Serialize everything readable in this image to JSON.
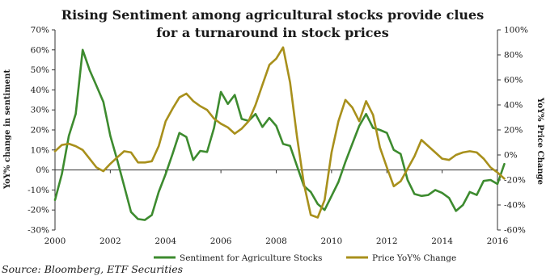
{
  "chart_data": {
    "type": "line",
    "title_lines": [
      "Rising Sentiment among agricultural stocks provide clues",
      "for a turnaround in stock prices"
    ],
    "ylabel_left": "YoY% change in sentiment",
    "ylabel_right": "YoY% Price Change",
    "xlim": [
      2000,
      2016
    ],
    "ylim_left": [
      -30,
      70
    ],
    "ylim_right": [
      -60,
      100
    ],
    "x_ticks": [
      2000,
      2002,
      2004,
      2006,
      2008,
      2010,
      2012,
      2014,
      2016
    ],
    "x_tick_labels": [
      "2000",
      "2002",
      "2004",
      "2006",
      "2008",
      "2010",
      "2012",
      "2014",
      "2016"
    ],
    "left_ticks": [
      -30,
      -20,
      -10,
      0,
      10,
      20,
      30,
      40,
      50,
      60,
      70
    ],
    "left_tick_labels": [
      "-30%",
      "-20%",
      "-10%",
      "0%",
      "10%",
      "20%",
      "30%",
      "40%",
      "50%",
      "60%",
      "70%"
    ],
    "right_ticks": [
      -60,
      -40,
      -20,
      0,
      20,
      40,
      60,
      80,
      100
    ],
    "right_tick_labels": [
      "-60%",
      "-40%",
      "-20%",
      "0%",
      "20%",
      "40%",
      "60%",
      "80%",
      "100%"
    ],
    "series": [
      {
        "name": "Sentiment for Agriculture Stocks",
        "axis": "left",
        "color": "#3d8b2f",
        "points": [
          [
            2000.0,
            -15
          ],
          [
            2000.25,
            -2
          ],
          [
            2000.5,
            17
          ],
          [
            2000.75,
            28
          ],
          [
            2001.0,
            60
          ],
          [
            2001.25,
            50
          ],
          [
            2001.5,
            42
          ],
          [
            2001.75,
            34
          ],
          [
            2002.0,
            17
          ],
          [
            2002.25,
            5
          ],
          [
            2002.5,
            -8
          ],
          [
            2002.75,
            -21
          ],
          [
            2003.0,
            -24.5
          ],
          [
            2003.25,
            -25
          ],
          [
            2003.5,
            -22.5
          ],
          [
            2003.75,
            -11
          ],
          [
            2004.0,
            -2
          ],
          [
            2004.25,
            8
          ],
          [
            2004.5,
            18.5
          ],
          [
            2004.75,
            16.5
          ],
          [
            2005.0,
            5
          ],
          [
            2005.25,
            9.5
          ],
          [
            2005.5,
            9
          ],
          [
            2005.75,
            21
          ],
          [
            2006.0,
            39
          ],
          [
            2006.25,
            33
          ],
          [
            2006.5,
            37.5
          ],
          [
            2006.75,
            25.5
          ],
          [
            2007.0,
            24.5
          ],
          [
            2007.25,
            28
          ],
          [
            2007.5,
            21.5
          ],
          [
            2007.75,
            26
          ],
          [
            2008.0,
            22
          ],
          [
            2008.25,
            13
          ],
          [
            2008.5,
            12
          ],
          [
            2008.75,
            2
          ],
          [
            2009.0,
            -8
          ],
          [
            2009.25,
            -11
          ],
          [
            2009.5,
            -17
          ],
          [
            2009.75,
            -20
          ],
          [
            2010.0,
            -13
          ],
          [
            2010.25,
            -6
          ],
          [
            2010.5,
            4
          ],
          [
            2010.75,
            13
          ],
          [
            2011.0,
            22
          ],
          [
            2011.25,
            28
          ],
          [
            2011.5,
            21
          ],
          [
            2011.75,
            20
          ],
          [
            2012.0,
            18.5
          ],
          [
            2012.25,
            10
          ],
          [
            2012.5,
            8
          ],
          [
            2012.75,
            -5
          ],
          [
            2013.0,
            -12
          ],
          [
            2013.25,
            -13
          ],
          [
            2013.5,
            -12.5
          ],
          [
            2013.75,
            -10
          ],
          [
            2014.0,
            -11.5
          ],
          [
            2014.25,
            -14
          ],
          [
            2014.5,
            -20.5
          ],
          [
            2014.75,
            -17.5
          ],
          [
            2015.0,
            -11
          ],
          [
            2015.25,
            -12.5
          ],
          [
            2015.5,
            -5.5
          ],
          [
            2015.75,
            -5
          ],
          [
            2016.0,
            -7
          ],
          [
            2016.25,
            3
          ]
        ]
      },
      {
        "name": "Price YoY% Change",
        "axis": "right",
        "color": "#a8901c",
        "points": [
          [
            2000.0,
            3
          ],
          [
            2000.25,
            8
          ],
          [
            2000.5,
            9
          ],
          [
            2000.75,
            7
          ],
          [
            2001.0,
            4
          ],
          [
            2001.25,
            -3
          ],
          [
            2001.5,
            -10
          ],
          [
            2001.75,
            -13
          ],
          [
            2002.0,
            -7
          ],
          [
            2002.25,
            -2
          ],
          [
            2002.5,
            3
          ],
          [
            2002.75,
            2
          ],
          [
            2003.0,
            -6
          ],
          [
            2003.25,
            -6
          ],
          [
            2003.5,
            -5
          ],
          [
            2003.75,
            7
          ],
          [
            2004.0,
            27
          ],
          [
            2004.25,
            37
          ],
          [
            2004.5,
            46
          ],
          [
            2004.75,
            49
          ],
          [
            2005.0,
            43
          ],
          [
            2005.25,
            39
          ],
          [
            2005.5,
            36
          ],
          [
            2005.75,
            29
          ],
          [
            2006.0,
            25
          ],
          [
            2006.25,
            22
          ],
          [
            2006.5,
            17
          ],
          [
            2006.75,
            21
          ],
          [
            2007.0,
            27
          ],
          [
            2007.25,
            40
          ],
          [
            2007.5,
            56
          ],
          [
            2007.75,
            72
          ],
          [
            2008.0,
            77
          ],
          [
            2008.25,
            86
          ],
          [
            2008.5,
            58
          ],
          [
            2008.75,
            15
          ],
          [
            2009.0,
            -23
          ],
          [
            2009.25,
            -48
          ],
          [
            2009.5,
            -50
          ],
          [
            2009.75,
            -36
          ],
          [
            2010.0,
            2
          ],
          [
            2010.25,
            27
          ],
          [
            2010.5,
            44
          ],
          [
            2010.75,
            38
          ],
          [
            2011.0,
            27
          ],
          [
            2011.25,
            43
          ],
          [
            2011.5,
            32
          ],
          [
            2011.75,
            6
          ],
          [
            2012.0,
            -10
          ],
          [
            2012.25,
            -25
          ],
          [
            2012.5,
            -21
          ],
          [
            2012.75,
            -11
          ],
          [
            2013.0,
            -1
          ],
          [
            2013.25,
            12
          ],
          [
            2013.5,
            7
          ],
          [
            2013.75,
            2
          ],
          [
            2014.0,
            -3
          ],
          [
            2014.25,
            -4
          ],
          [
            2014.5,
            0
          ],
          [
            2014.75,
            2
          ],
          [
            2015.0,
            3
          ],
          [
            2015.25,
            2
          ],
          [
            2015.5,
            -3
          ],
          [
            2015.75,
            -10
          ],
          [
            2016.0,
            -14
          ],
          [
            2016.25,
            -19
          ]
        ]
      }
    ],
    "legend_position": "bottom",
    "grid": false
  },
  "source": "Source: Bloomberg, ETF Securities"
}
